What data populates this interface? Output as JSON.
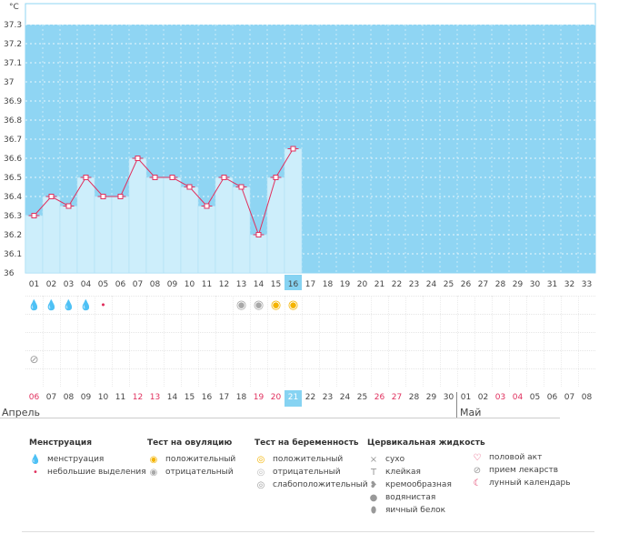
{
  "chart_data": {
    "type": "line",
    "ylabel": "°C",
    "ylim": [
      36.0,
      37.3
    ],
    "ytick_labels": [
      "36",
      "36.1",
      "36.2",
      "36.3",
      "36.4",
      "36.5",
      "36.6",
      "36.7",
      "36.8",
      "36.9",
      "37",
      "37.1",
      "37.2",
      "37.3"
    ],
    "x_tick_labels": [
      "01",
      "02",
      "03",
      "04",
      "05",
      "06",
      "07",
      "08",
      "09",
      "10",
      "11",
      "12",
      "13",
      "14",
      "15",
      "16",
      "17",
      "18",
      "19",
      "20",
      "21",
      "22",
      "23",
      "24",
      "25",
      "26",
      "27",
      "28",
      "29",
      "30",
      "31",
      "32",
      "33"
    ],
    "selected_day": "16",
    "series": [
      {
        "values": [
          36.3,
          36.4,
          36.35,
          36.5,
          36.4,
          36.4,
          36.6,
          36.5,
          36.5,
          36.45,
          36.35,
          36.5,
          36.45,
          36.2,
          36.5,
          36.65
        ]
      }
    ],
    "colors": {
      "sky": "#8fd5f3",
      "fill": "#cdeefb",
      "line": "#e0305e",
      "selected": "#86d3f2"
    }
  },
  "symbols": {
    "menstruation": [
      {
        "day": 1,
        "kind": "heavy",
        "glyph": "💧"
      },
      {
        "day": 2,
        "kind": "heavy",
        "glyph": "💧"
      },
      {
        "day": 3,
        "kind": "heavy",
        "glyph": "💧"
      },
      {
        "day": 4,
        "kind": "heavy",
        "glyph": "💧"
      },
      {
        "day": 5,
        "kind": "light",
        "glyph": "•"
      }
    ],
    "ovulation_test": [
      {
        "day": 13,
        "result": "negative",
        "glyph": "◉"
      },
      {
        "day": 14,
        "result": "negative",
        "glyph": "◉"
      },
      {
        "day": 15,
        "result": "positive",
        "glyph": "◉"
      },
      {
        "day": 16,
        "result": "positive",
        "glyph": "◉"
      }
    ],
    "medication": [
      {
        "day": 1,
        "glyph": "⊘"
      }
    ]
  },
  "dates": [
    {
      "d": "06",
      "red": true
    },
    {
      "d": "07"
    },
    {
      "d": "08"
    },
    {
      "d": "09"
    },
    {
      "d": "10"
    },
    {
      "d": "11"
    },
    {
      "d": "12",
      "red": true
    },
    {
      "d": "13",
      "red": true
    },
    {
      "d": "14"
    },
    {
      "d": "15"
    },
    {
      "d": "16"
    },
    {
      "d": "17"
    },
    {
      "d": "18"
    },
    {
      "d": "19",
      "red": true
    },
    {
      "d": "20",
      "red": true
    },
    {
      "d": "21",
      "sel": true
    },
    {
      "d": "22"
    },
    {
      "d": "23"
    },
    {
      "d": "24"
    },
    {
      "d": "25"
    },
    {
      "d": "26",
      "red": true
    },
    {
      "d": "27",
      "red": true
    },
    {
      "d": "28"
    },
    {
      "d": "29"
    },
    {
      "d": "30"
    },
    {
      "d": "01"
    },
    {
      "d": "02"
    },
    {
      "d": "03",
      "red": true
    },
    {
      "d": "04",
      "red": true
    },
    {
      "d": "05"
    },
    {
      "d": "06"
    },
    {
      "d": "07"
    },
    {
      "d": "08"
    }
  ],
  "months": {
    "april": "Апрель",
    "may": "Май"
  },
  "legend": {
    "menstruation": {
      "title": "Менструация",
      "items": [
        {
          "icon": "💧",
          "label": "менструация",
          "color": "#e0305e"
        },
        {
          "icon": "•",
          "label": "небольшие выделения",
          "color": "#e0305e"
        }
      ]
    },
    "ovulation": {
      "title": "Тест на овуляцию",
      "items": [
        {
          "icon": "◉",
          "label": "положительный",
          "color": "#f4b400"
        },
        {
          "icon": "◉",
          "label": "отрицательный",
          "color": "#a8a8a8"
        }
      ]
    },
    "pregnancy": {
      "title": "Тест на беременность",
      "items": [
        {
          "icon": "◎",
          "label": "положительный",
          "color": "#f4b400"
        },
        {
          "icon": "◎",
          "label": "отрицательный",
          "color": "#bbbbbb"
        },
        {
          "icon": "◎",
          "label": "слабоположительный",
          "color": "#999999"
        }
      ]
    },
    "cervical": {
      "title": "Цервикальная жидкость",
      "items": [
        {
          "icon": "×",
          "label": "сухо",
          "color": "#999999"
        },
        {
          "icon": "T",
          "label": "клейкая",
          "color": "#999999"
        },
        {
          "icon": "❥",
          "label": "кремообразная",
          "color": "#999999"
        },
        {
          "icon": "●",
          "label": "водянистая",
          "color": "#999999"
        },
        {
          "icon": "⬮",
          "label": "яичный белок",
          "color": "#999999"
        }
      ]
    },
    "other": {
      "items": [
        {
          "icon": "♡",
          "label": "половой акт",
          "color": "#e0305e"
        },
        {
          "icon": "⊘",
          "label": "прием лекарств",
          "color": "#999999"
        },
        {
          "icon": "☾",
          "label": "лунный календарь",
          "color": "#e0305e"
        }
      ]
    }
  }
}
